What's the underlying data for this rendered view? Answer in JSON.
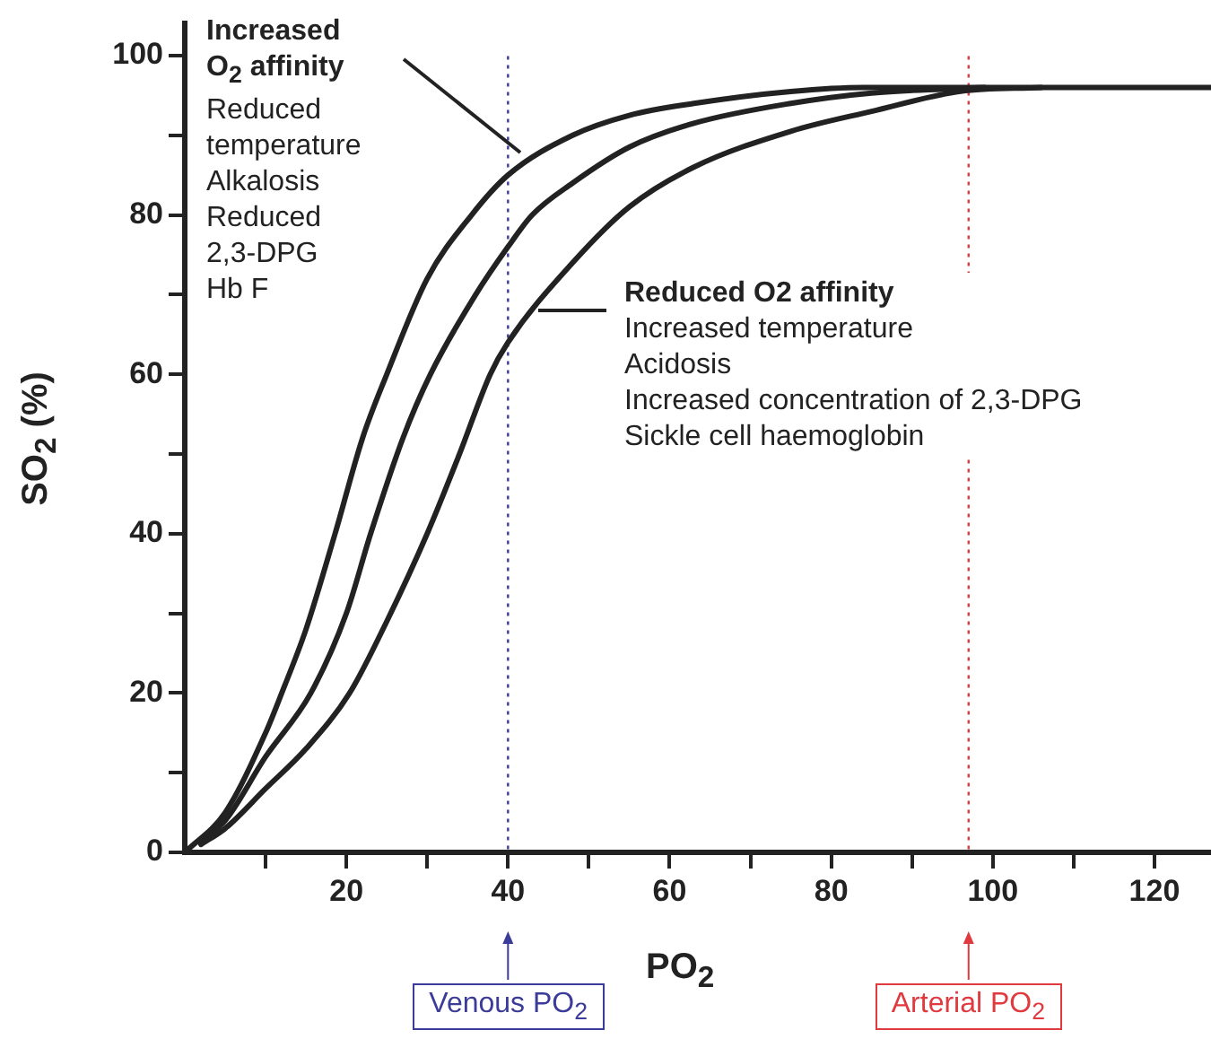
{
  "chart_data": {
    "type": "line",
    "xlabel": "PO$_{2}$",
    "ylabel": "SO$_{2}$ (%)",
    "xlim": [
      0,
      127
    ],
    "ylim": [
      0,
      104
    ],
    "xticks": [
      {
        "value": 10,
        "label": null
      },
      20,
      {
        "value": 30,
        "label": null
      },
      40,
      {
        "value": 50,
        "label": null
      },
      60,
      {
        "value": 70,
        "label": null
      },
      80,
      {
        "value": 90,
        "label": null
      },
      100,
      {
        "value": 110,
        "label": null
      },
      120
    ],
    "yticks": [
      0,
      {
        "value": 10,
        "label": null
      },
      20,
      {
        "value": 30,
        "label": null
      },
      40,
      {
        "value": 50,
        "label": null
      },
      60,
      {
        "value": 70,
        "label": null
      },
      80,
      {
        "value": 90,
        "label": null
      },
      100
    ],
    "grid": false,
    "legend": false,
    "marker": "none",
    "line_style": "solid",
    "series": [
      {
        "color": "#222222",
        "x": [
          0,
          5,
          10,
          12,
          15,
          18.6,
          22,
          25,
          30,
          35.5,
          40,
          48,
          55,
          63,
          75,
          84,
          100,
          127
        ],
        "values": [
          0,
          5,
          15,
          20,
          28,
          40,
          52,
          60,
          72,
          80,
          85,
          90,
          92.5,
          94,
          95.5,
          96,
          96,
          96
        ]
      },
      {
        "color": "#222222",
        "x": [
          2,
          5,
          10,
          15.6,
          20,
          23,
          27,
          30.4,
          36,
          40,
          43,
          48,
          55,
          63,
          75,
          85,
          99
        ],
        "values": [
          1.5,
          4,
          12,
          20,
          30,
          40,
          52,
          60,
          70,
          76,
          80,
          84,
          88.5,
          91.5,
          94,
          95.3,
          96
        ]
      },
      {
        "color": "#222222",
        "x": [
          2,
          5,
          10,
          15,
          20.4,
          25,
          30,
          34,
          37.8,
          40,
          48,
          55,
          63,
          75,
          85,
          96,
          106
        ],
        "values": [
          1,
          3,
          8,
          13,
          20,
          29,
          40,
          50,
          60,
          64,
          74,
          81,
          86,
          90.5,
          93,
          95.5,
          96
        ]
      }
    ],
    "ref_lines": [
      {
        "axis": "x",
        "value": 40,
        "label": "Venous PO$_{2}$",
        "color": "#3b3b9a",
        "line_style": "dotted"
      },
      {
        "axis": "x",
        "value": 97,
        "label": "Arterial PO$_{2}$",
        "color": "#e0393e",
        "line_style": "dotted"
      }
    ],
    "annotations": [
      "Increased\nO$_{2}$ affinity\nReduced\ntemperature\nAlkalosis\nReduced\n2,3-DPG\nHb F",
      "Reduced O2 affinity\nIncreased temperature\nAcidosis\nIncreased concentration of 2,3-DPG\nSickle cell haemoglobin"
    ]
  }
}
